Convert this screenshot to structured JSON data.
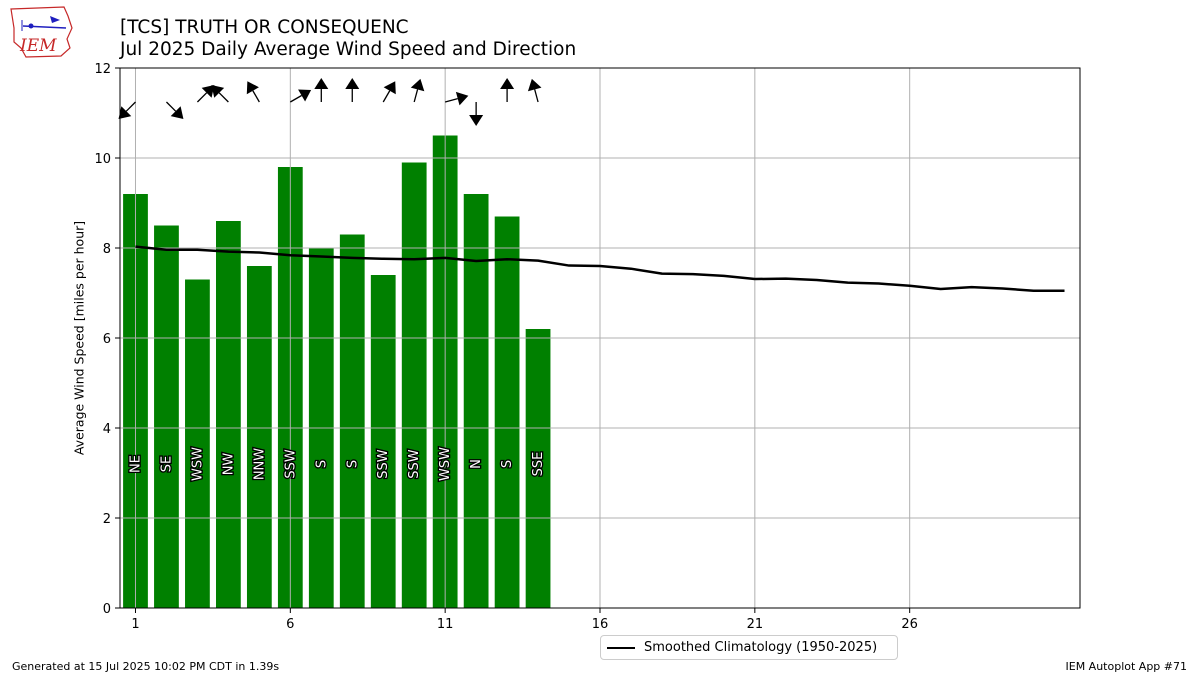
{
  "header": {
    "title_line1": "[TCS] TRUTH OR CONSEQUENC",
    "title_line2": "Jul 2025 Daily Average Wind Speed and Direction"
  },
  "logo": {
    "text": "IEM"
  },
  "footer": {
    "left": "Generated at 15 Jul 2025 10:02 PM CDT in 1.39s",
    "right": "IEM Autoplot App #71"
  },
  "colors": {
    "bar": "#008000",
    "climatology": "#000000",
    "grid": "#b0b0b0"
  },
  "chart_data": {
    "type": "bar",
    "title": "Jul 2025 Daily Average Wind Speed and Direction",
    "ylabel": "Average Wind Speed [miles per hour]",
    "xlabel": "",
    "xlim": [
      0.5,
      31.5
    ],
    "ylim": [
      0,
      12
    ],
    "xticks": [
      1,
      6,
      11,
      16,
      21,
      26
    ],
    "yticks": [
      0,
      2,
      4,
      6,
      8,
      10,
      12
    ],
    "grid": true,
    "legend_placement": "bottom-center",
    "days": [
      1,
      2,
      3,
      4,
      5,
      6,
      7,
      8,
      9,
      10,
      11,
      12,
      13,
      14
    ],
    "values": [
      9.2,
      8.5,
      7.3,
      8.6,
      7.6,
      9.8,
      8.0,
      8.3,
      7.4,
      9.9,
      10.5,
      9.2,
      8.7,
      6.2
    ],
    "directions": [
      "NE",
      "SE",
      "WSW",
      "NW",
      "NNW",
      "SSW",
      "S",
      "S",
      "SSW",
      "SSW",
      "WSW",
      "N",
      "S",
      "SSE"
    ],
    "arrow_angles_deg": [
      225,
      315,
      45,
      135,
      120,
      30,
      90,
      90,
      60,
      75,
      15,
      270,
      90,
      105
    ],
    "series": [
      {
        "name": "Smoothed Climatology (1950-2025)",
        "type": "line",
        "x": [
          1,
          2,
          3,
          4,
          5,
          6,
          7,
          8,
          9,
          10,
          11,
          12,
          13,
          14,
          15,
          16,
          17,
          18,
          19,
          20,
          21,
          22,
          23,
          24,
          25,
          26,
          27,
          28,
          29,
          30,
          31
        ],
        "values": [
          8.03,
          7.96,
          7.96,
          7.92,
          7.9,
          7.84,
          7.81,
          7.78,
          7.76,
          7.75,
          7.78,
          7.71,
          7.75,
          7.72,
          7.61,
          7.6,
          7.54,
          7.43,
          7.42,
          7.38,
          7.31,
          7.32,
          7.29,
          7.23,
          7.21,
          7.16,
          7.09,
          7.13,
          7.1,
          7.05,
          7.05
        ]
      }
    ]
  }
}
